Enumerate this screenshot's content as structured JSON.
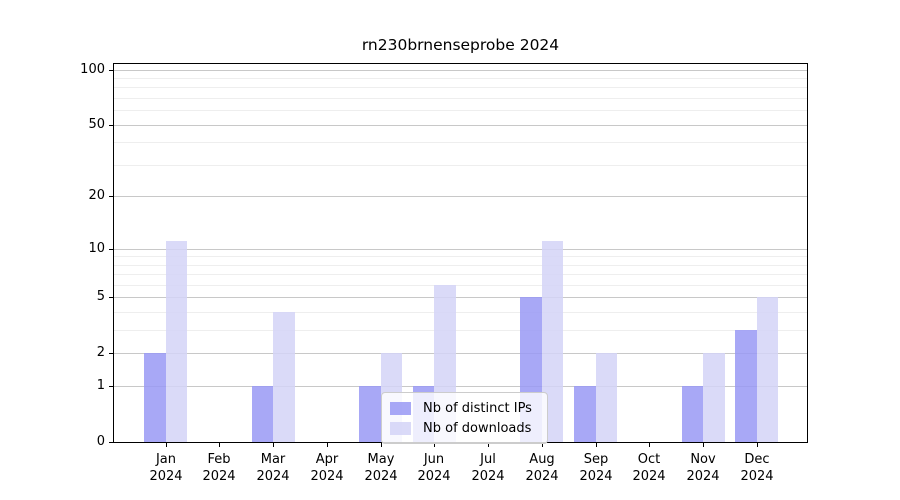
{
  "title": "rn230brnenseprobe 2024",
  "chart_data": {
    "type": "bar",
    "title": "rn230brnenseprobe 2024",
    "categories": [
      "Jan",
      "Feb",
      "Mar",
      "Apr",
      "May",
      "Jun",
      "Jul",
      "Aug",
      "Sep",
      "Oct",
      "Nov",
      "Dec"
    ],
    "category_year": "2024",
    "series": [
      {
        "name": "Nb of distinct IPs",
        "key": "distinct-ips",
        "color": "#9999f5",
        "values": [
          2,
          0,
          1,
          0,
          1,
          1,
          0,
          5,
          1,
          0,
          1,
          3
        ]
      },
      {
        "name": "Nb of downloads",
        "key": "downloads",
        "color": "#d3d3f7",
        "values": [
          11,
          0,
          4,
          0,
          2,
          6,
          0,
          11,
          2,
          0,
          2,
          5
        ]
      }
    ],
    "bar_alpha": 0.85,
    "yscale": "log1p",
    "ylim": [
      0,
      110
    ],
    "y_ticks": [
      0,
      1,
      2,
      5,
      10,
      20,
      50,
      100
    ],
    "y_minor_ticks": [
      3,
      4,
      6,
      7,
      8,
      9,
      30,
      40,
      60,
      70,
      80,
      90
    ],
    "xlabel": "",
    "ylabel": "",
    "grid": true,
    "legend_position": "lower center"
  },
  "colors": {
    "background": "#ffffff",
    "bar_distinct_ips_effective": "#a8a8f6",
    "bar_downloads_effective": "#d9d9f8",
    "major_grid": "#c8c8c8",
    "minor_grid": "#eeeeee",
    "axis": "#000000",
    "text": "#000000",
    "legend_border": "#cccccc"
  }
}
